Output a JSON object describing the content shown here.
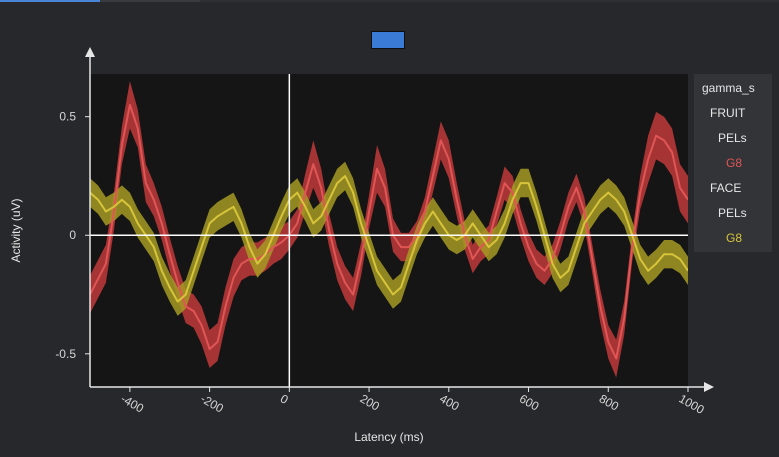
{
  "chart_data": {
    "type": "line",
    "xlabel": "Latency (ms)",
    "ylabel": "Activity (uV)",
    "xlim": [
      -500,
      1000
    ],
    "ylim": [
      -0.64,
      0.68
    ],
    "xticks": [
      -400,
      -200,
      0,
      200,
      400,
      600,
      800,
      1000
    ],
    "xtick_labels": [
      "-400",
      "-200",
      "0",
      "200",
      "400",
      "600",
      "800",
      "1000"
    ],
    "yticks": [
      0.5,
      0,
      -0.5
    ],
    "ytick_labels": [
      "0.5",
      "0",
      "-0.5"
    ],
    "grid": false,
    "zero_lines": true,
    "legend_position": "right",
    "legend": [
      {
        "text": "gamma_s",
        "indent": 0,
        "color": "#e6e6e6"
      },
      {
        "text": "FRUIT",
        "indent": 1,
        "color": "#e6e6e6"
      },
      {
        "text": "PELs",
        "indent": 2,
        "color": "#e6e6e6"
      },
      {
        "text": "G8",
        "indent": 3,
        "color": "#e05555"
      },
      {
        "text": "FACE",
        "indent": 1,
        "color": "#e6e6e6"
      },
      {
        "text": "PELs",
        "indent": 2,
        "color": "#e6e6e6"
      },
      {
        "text": "G8",
        "indent": 3,
        "color": "#d7c43a"
      }
    ],
    "series": [
      {
        "color": "#e05555",
        "band_color": "#c03a3a",
        "x": [
          -500,
          -460,
          -440,
          -420,
          -400,
          -380,
          -360,
          -340,
          -320,
          -300,
          -280,
          -260,
          -240,
          -220,
          -200,
          -180,
          -160,
          -140,
          -120,
          -100,
          -80,
          -60,
          -40,
          -20,
          0,
          20,
          40,
          60,
          80,
          100,
          120,
          140,
          160,
          180,
          200,
          220,
          240,
          260,
          280,
          300,
          320,
          340,
          360,
          380,
          400,
          420,
          440,
          460,
          480,
          500,
          520,
          540,
          560,
          580,
          600,
          620,
          640,
          660,
          680,
          700,
          720,
          740,
          760,
          780,
          800,
          820,
          840,
          860,
          880,
          900,
          920,
          940,
          960,
          980,
          1000
        ],
        "y": [
          -0.25,
          -0.12,
          0.1,
          0.38,
          0.55,
          0.45,
          0.22,
          0.15,
          0.05,
          -0.08,
          -0.2,
          -0.3,
          -0.32,
          -0.38,
          -0.48,
          -0.45,
          -0.3,
          -0.18,
          -0.12,
          -0.1,
          -0.1,
          -0.08,
          -0.05,
          -0.03,
          0.0,
          0.05,
          0.18,
          0.3,
          0.2,
          0.02,
          -0.12,
          -0.2,
          -0.25,
          -0.1,
          0.1,
          0.28,
          0.2,
          0.0,
          -0.05,
          -0.05,
          0.0,
          0.1,
          0.25,
          0.4,
          0.32,
          0.15,
          0.0,
          -0.1,
          -0.05,
          -0.02,
          0.1,
          0.22,
          0.18,
          0.05,
          -0.05,
          -0.12,
          -0.15,
          -0.1,
          0.0,
          0.12,
          0.2,
          0.1,
          -0.1,
          -0.3,
          -0.45,
          -0.52,
          -0.35,
          -0.05,
          0.18,
          0.32,
          0.42,
          0.4,
          0.35,
          0.2,
          0.15
        ],
        "err": [
          0.08,
          0.08,
          0.08,
          0.08,
          0.1,
          0.08,
          0.08,
          0.07,
          0.07,
          0.07,
          0.07,
          0.07,
          0.07,
          0.08,
          0.08,
          0.08,
          0.08,
          0.08,
          0.07,
          0.07,
          0.07,
          0.07,
          0.07,
          0.07,
          0.06,
          0.06,
          0.08,
          0.1,
          0.08,
          0.07,
          0.07,
          0.07,
          0.07,
          0.07,
          0.07,
          0.1,
          0.08,
          0.07,
          0.06,
          0.06,
          0.06,
          0.06,
          0.07,
          0.08,
          0.08,
          0.07,
          0.06,
          0.06,
          0.06,
          0.06,
          0.06,
          0.07,
          0.07,
          0.06,
          0.06,
          0.06,
          0.06,
          0.06,
          0.06,
          0.06,
          0.06,
          0.06,
          0.06,
          0.07,
          0.07,
          0.08,
          0.07,
          0.06,
          0.07,
          0.1,
          0.1,
          0.1,
          0.1,
          0.1,
          0.1
        ]
      },
      {
        "color": "#d7c43a",
        "band_color": "#a59a24",
        "x": [
          -500,
          -480,
          -460,
          -440,
          -420,
          -400,
          -380,
          -360,
          -340,
          -320,
          -300,
          -280,
          -260,
          -240,
          -220,
          -200,
          -180,
          -160,
          -140,
          -120,
          -100,
          -80,
          -60,
          -40,
          -20,
          0,
          20,
          40,
          60,
          80,
          100,
          120,
          140,
          160,
          180,
          200,
          220,
          240,
          260,
          280,
          300,
          320,
          340,
          360,
          380,
          400,
          420,
          440,
          460,
          480,
          500,
          520,
          540,
          560,
          580,
          600,
          620,
          640,
          660,
          680,
          700,
          720,
          740,
          760,
          780,
          800,
          820,
          840,
          860,
          880,
          900,
          920,
          940,
          960,
          980,
          1000
        ],
        "y": [
          0.18,
          0.15,
          0.1,
          0.12,
          0.15,
          0.12,
          0.05,
          0.0,
          -0.05,
          -0.15,
          -0.22,
          -0.28,
          -0.25,
          -0.15,
          -0.05,
          0.05,
          0.08,
          0.1,
          0.12,
          0.05,
          -0.05,
          -0.12,
          -0.08,
          0.0,
          0.08,
          0.15,
          0.18,
          0.12,
          0.05,
          0.08,
          0.15,
          0.22,
          0.25,
          0.18,
          0.05,
          -0.05,
          -0.15,
          -0.2,
          -0.25,
          -0.22,
          -0.12,
          -0.02,
          0.05,
          0.1,
          0.05,
          0.0,
          -0.02,
          0.0,
          0.05,
          0.0,
          -0.05,
          -0.02,
          0.05,
          0.15,
          0.22,
          0.22,
          0.12,
          0.0,
          -0.12,
          -0.18,
          -0.15,
          -0.05,
          0.05,
          0.1,
          0.15,
          0.18,
          0.15,
          0.1,
          0.0,
          -0.1,
          -0.15,
          -0.12,
          -0.08,
          -0.08,
          -0.1,
          -0.15
        ],
        "err": [
          0.06,
          0.06,
          0.06,
          0.06,
          0.06,
          0.06,
          0.06,
          0.06,
          0.06,
          0.06,
          0.06,
          0.06,
          0.06,
          0.06,
          0.06,
          0.06,
          0.06,
          0.06,
          0.06,
          0.06,
          0.06,
          0.06,
          0.06,
          0.06,
          0.06,
          0.06,
          0.06,
          0.06,
          0.06,
          0.06,
          0.06,
          0.06,
          0.06,
          0.06,
          0.06,
          0.06,
          0.06,
          0.06,
          0.06,
          0.06,
          0.06,
          0.06,
          0.06,
          0.06,
          0.06,
          0.06,
          0.06,
          0.06,
          0.06,
          0.06,
          0.06,
          0.06,
          0.06,
          0.06,
          0.06,
          0.06,
          0.06,
          0.06,
          0.06,
          0.06,
          0.06,
          0.06,
          0.06,
          0.06,
          0.06,
          0.06,
          0.06,
          0.06,
          0.06,
          0.06,
          0.06,
          0.06,
          0.06,
          0.06,
          0.06,
          0.06
        ]
      }
    ]
  }
}
